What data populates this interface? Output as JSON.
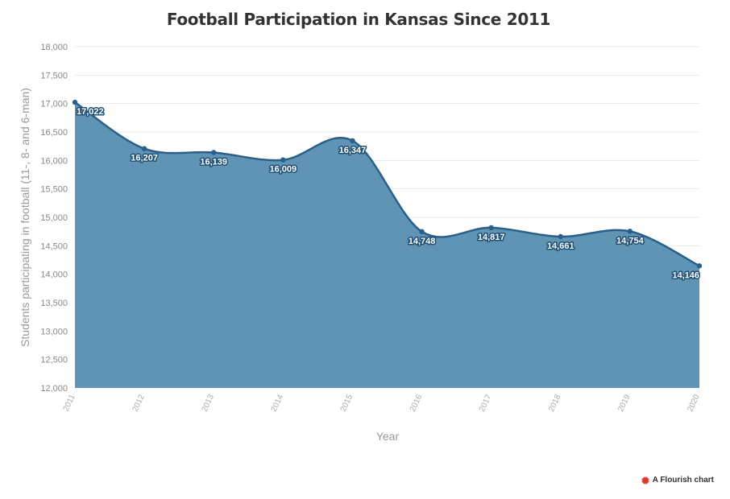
{
  "chart_data": {
    "type": "area",
    "title": "Football Participation in Kansas Since 2011",
    "xlabel": "Year",
    "ylabel": "Students participating in football (11-, 8- and 6-man)",
    "x": [
      "2011",
      "2012",
      "2013",
      "2014",
      "2015",
      "2016",
      "2017",
      "2018",
      "2019",
      "2020"
    ],
    "series": [
      {
        "values": [
          17022,
          16207,
          16139,
          16009,
          16347,
          14748,
          14817,
          14661,
          14754,
          14146
        ]
      }
    ],
    "data_labels": [
      "17,022",
      "16,207",
      "16,139",
      "16,009",
      "16,347",
      "14,748",
      "14,817",
      "14,661",
      "14,754",
      "14,146"
    ],
    "y_ticks": [
      12000,
      12500,
      13000,
      13500,
      14000,
      14500,
      15000,
      15500,
      16000,
      16500,
      17000,
      17500,
      18000
    ],
    "y_tick_labels": [
      "12,000",
      "12,500",
      "13,000",
      "13,500",
      "14,000",
      "14,500",
      "15,000",
      "15,500",
      "16,000",
      "16,500",
      "17,000",
      "17,500",
      "18,000"
    ],
    "ylim": [
      12000,
      18000
    ],
    "grid": true,
    "colors": {
      "area_fill": "#5f94b5",
      "line": "#2a5f8a",
      "point": "#2a5f8a"
    }
  },
  "credit": {
    "label": "A Flourish chart",
    "icon": "flourish-logo-icon",
    "icon_color": "#e3312b"
  }
}
